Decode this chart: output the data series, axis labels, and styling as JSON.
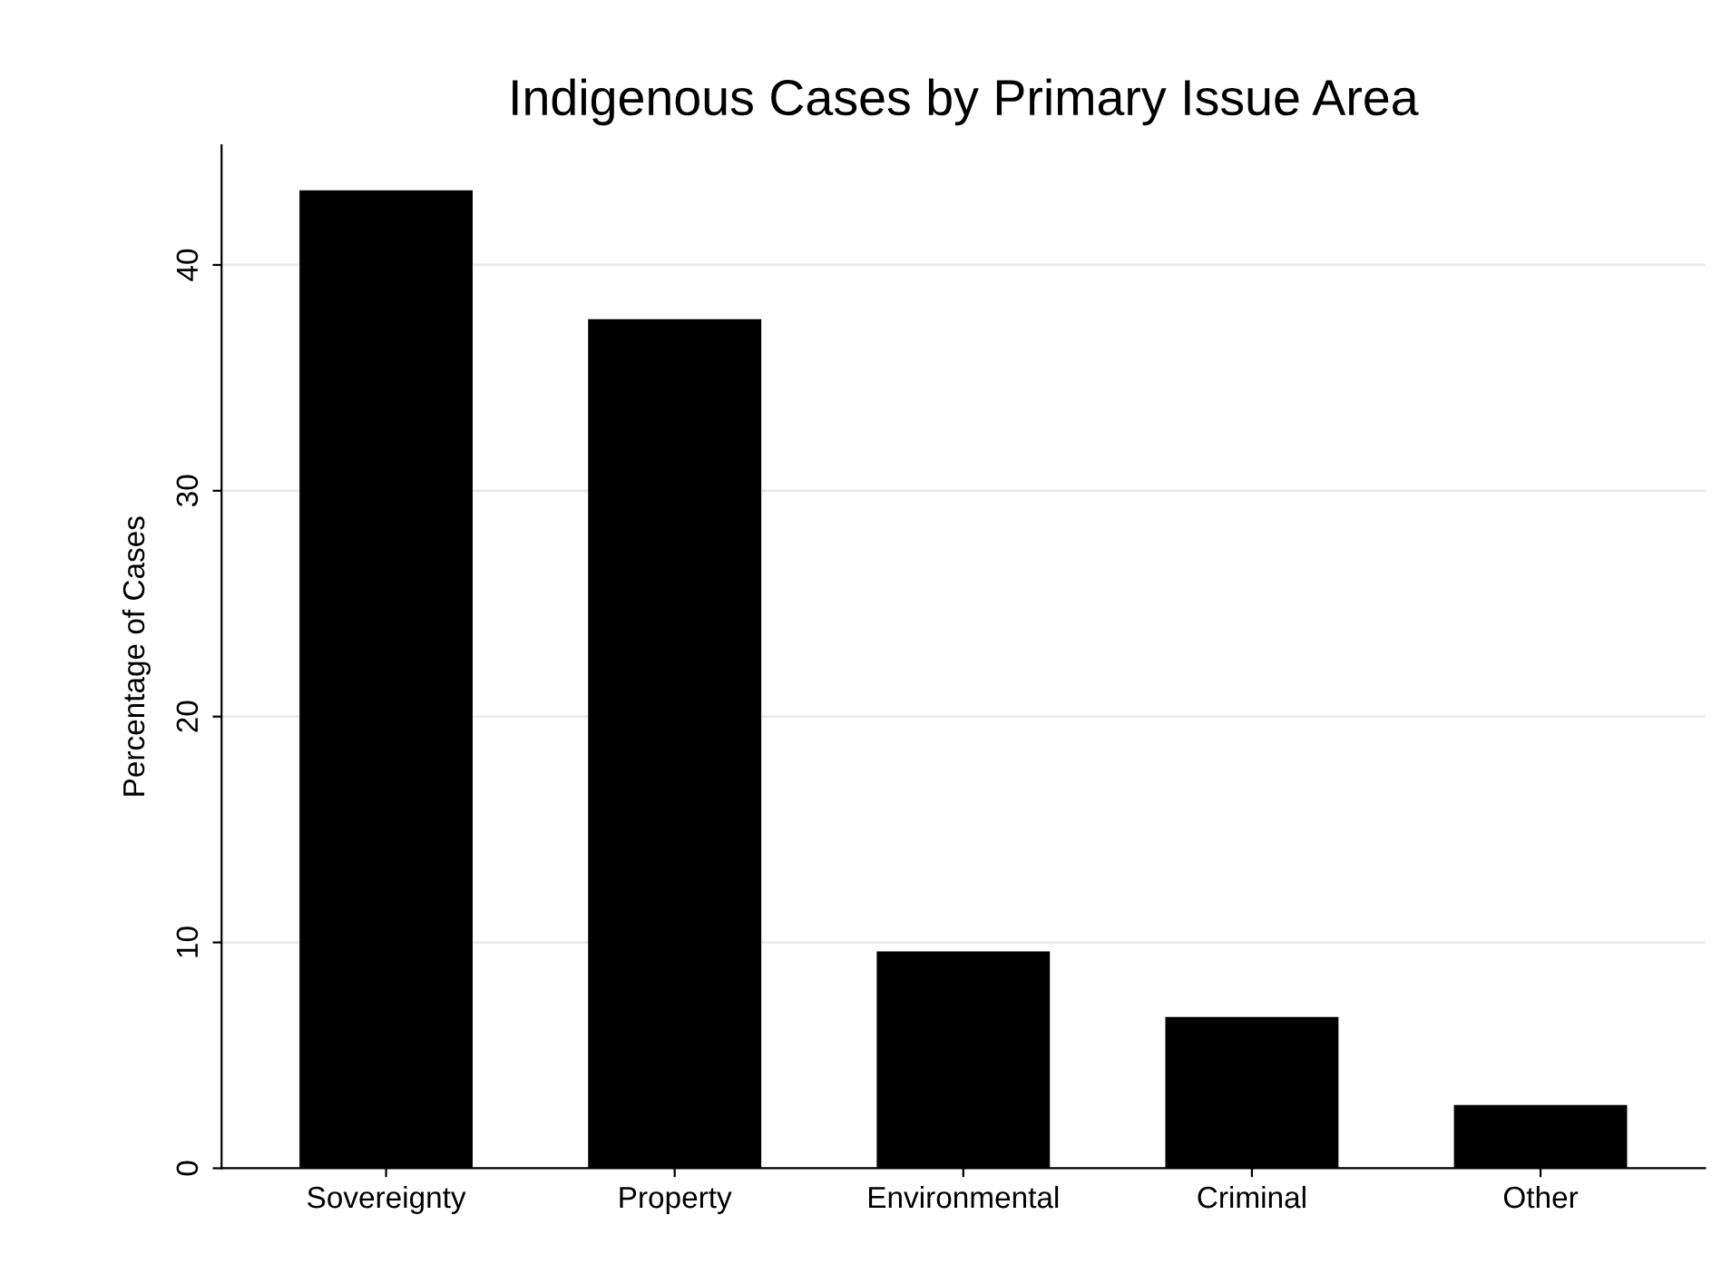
{
  "chart_data": {
    "type": "bar",
    "title": "Indigenous Cases by Primary Issue Area",
    "ylabel": "Percentage of Cases",
    "categories": [
      "Sovereignty",
      "Property",
      "Environmental",
      "Criminal",
      "Other"
    ],
    "values": [
      43.3,
      37.6,
      9.6,
      6.7,
      2.8
    ],
    "color": "#000000",
    "ylim": [
      0,
      45.3
    ],
    "yticks": [
      0,
      10,
      20,
      30,
      40
    ],
    "grid": "y",
    "legend": false
  }
}
